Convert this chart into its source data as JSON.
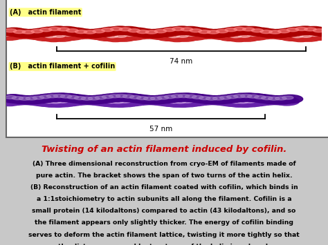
{
  "title": "Twisting of an actin filament induced by cofilin.",
  "title_color": "#cc0000",
  "bg_color": "#c8c8c8",
  "box_bg": "#ffffff",
  "label_a": "(A)   actin filament",
  "label_b": "(B)   actin filament + cofilin",
  "label_bg": "#ffff88",
  "bracket_a_label": "74 nm",
  "bracket_b_label": "57 nm",
  "filament_a_dark": "#aa0000",
  "filament_a_mid": "#cc2222",
  "filament_a_light": "#ff8888",
  "filament_a_white": "#ffcccc",
  "filament_b_dark": "#440088",
  "filament_b_mid": "#6622aa",
  "filament_b_light": "#aa88cc",
  "filament_b_white": "#ddbbee",
  "description_lines": [
    "(A) Three dimensional reconstruction from cryo-EM of filaments made of",
    "pure actin. The bracket shows the span of two turns of the actin helix.",
    "(B) Reconstruction of an actin filament coated with cofilin, which binds in",
    "a 1:1stoichiometry to actin subunits all along the filament. Cofilin is a",
    "small protein (14 kilodaltons) compared to actin (43 kilodaltons), and so",
    "the filament appears only slightly thicker. The energy of cofilin binding",
    "serves to deform the actin filament lattice, twisting it more tightly so that",
    "the distance spanned by two turns of the helix is reduced."
  ],
  "figsize": [
    4.74,
    3.55
  ],
  "dpi": 100
}
